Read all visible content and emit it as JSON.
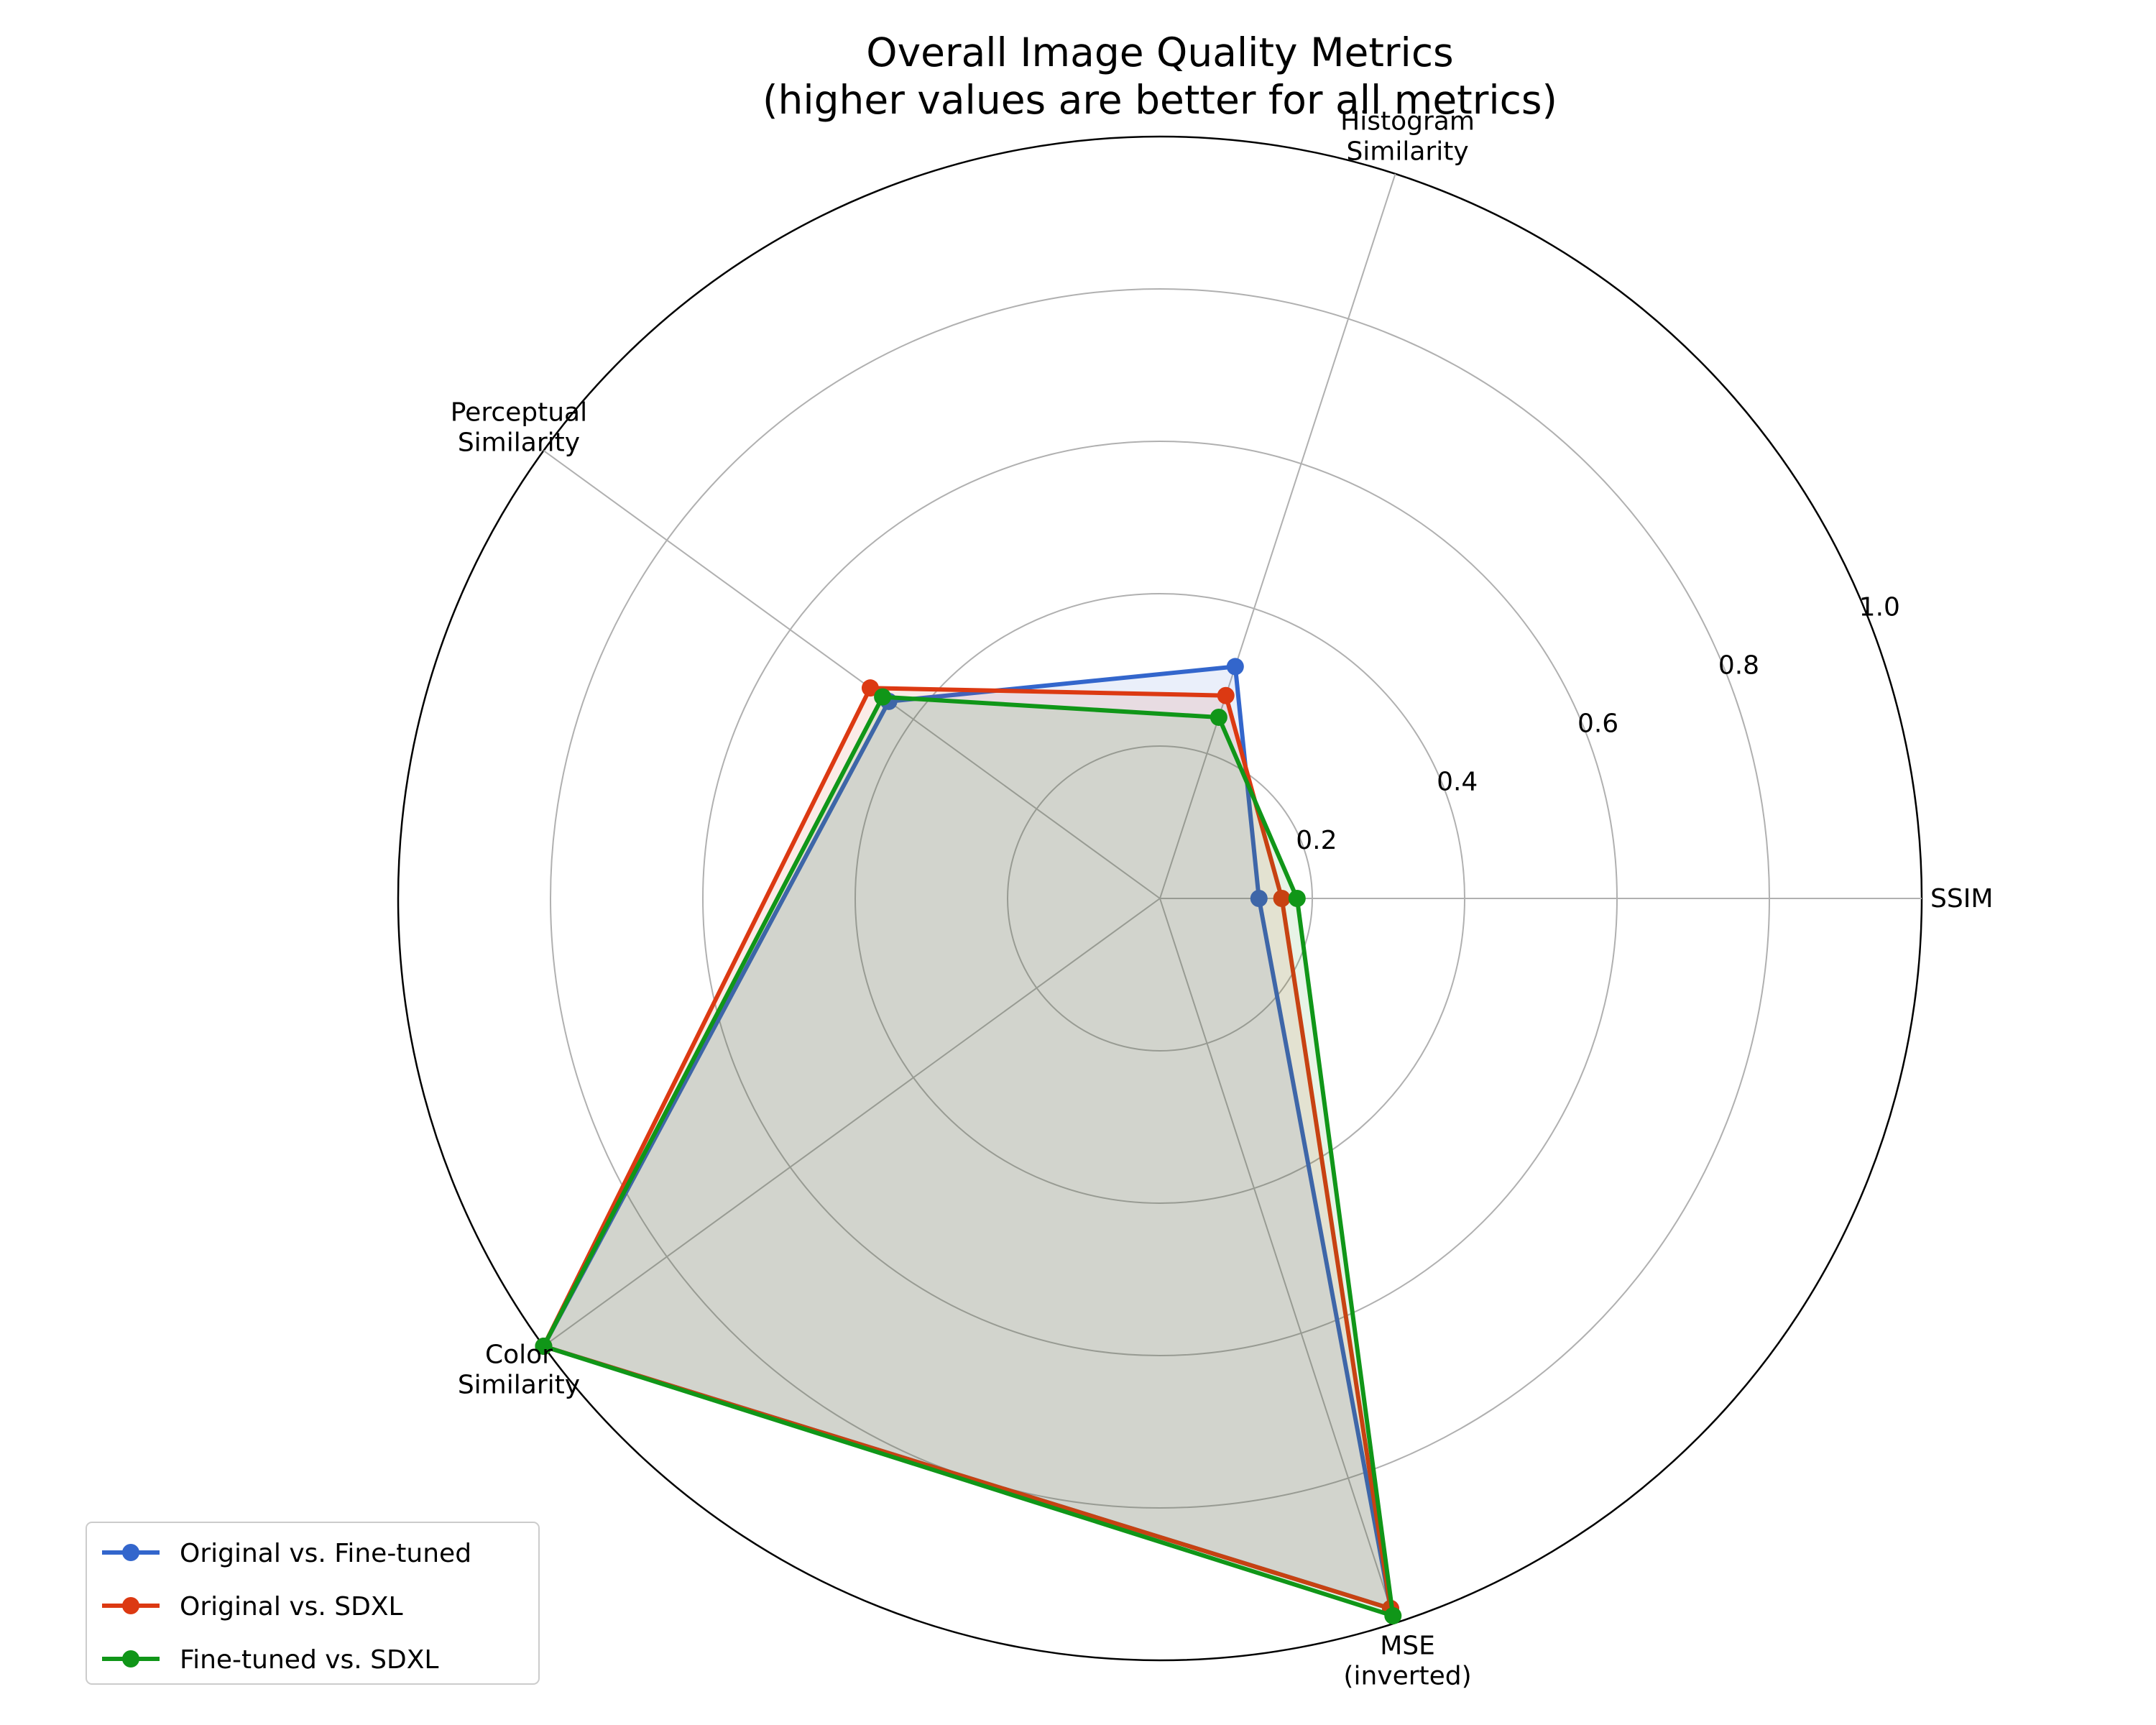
{
  "chart_data": {
    "type": "radar",
    "title": "Overall Image Quality Metrics",
    "subtitle": "(higher values are better for all metrics)",
    "categories": [
      [
        "SSIM"
      ],
      [
        "Histogram",
        "Similarity"
      ],
      [
        "Perceptual",
        "Similarity"
      ],
      [
        "Color",
        "Similarity"
      ],
      [
        "MSE",
        "(inverted)"
      ]
    ],
    "rlim": [
      0,
      1.0
    ],
    "rticks": [
      0.2,
      0.4,
      0.6,
      0.8,
      1.0
    ],
    "rtick_labels": [
      "0.2",
      "0.4",
      "0.6",
      "0.8",
      "1.0"
    ],
    "grid": true,
    "legend_position": "lower-left",
    "series": [
      {
        "name": "Original vs. Fine-tuned",
        "color": "#3366cc",
        "values": [
          0.13,
          0.32,
          0.44,
          1.0,
          0.98
        ]
      },
      {
        "name": "Original vs. SDXL",
        "color": "#dc3912",
        "values": [
          0.16,
          0.28,
          0.47,
          1.0,
          0.98
        ]
      },
      {
        "name": "Fine-tuned vs. SDXL",
        "color": "#109618",
        "values": [
          0.18,
          0.25,
          0.45,
          1.0,
          0.99
        ]
      }
    ]
  }
}
